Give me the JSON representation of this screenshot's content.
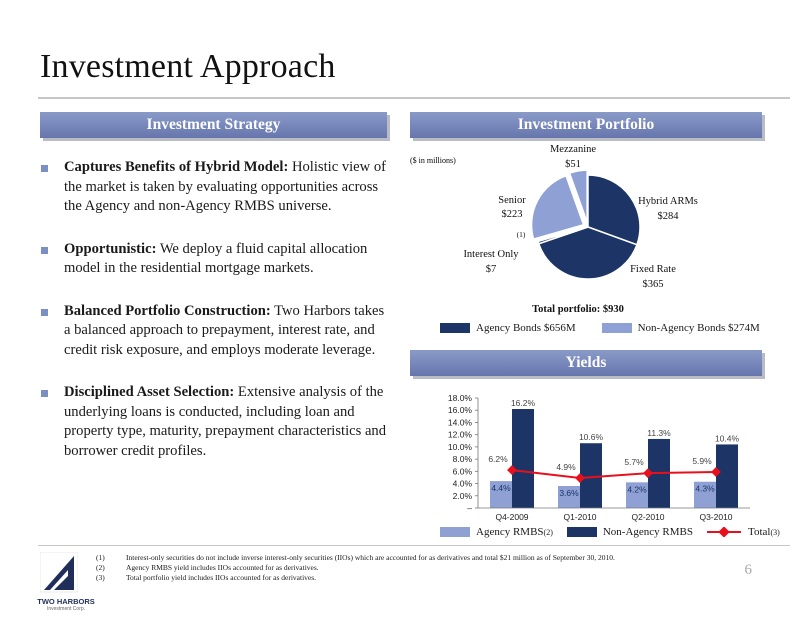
{
  "title": "Investment Approach",
  "headers": {
    "strategy": "Investment Strategy",
    "portfolio": "Investment Portfolio",
    "yields": "Yields"
  },
  "bullets": [
    {
      "bold": "Captures Benefits of Hybrid Model:",
      "text": " Holistic view of the market is taken by evaluating opportunities across the Agency and non-Agency RMBS universe."
    },
    {
      "bold": "Opportunistic:",
      "text": " We deploy a fluid capital allocation model in the residential mortgage markets."
    },
    {
      "bold": "Balanced Portfolio Construction:",
      "text": " Two Harbors takes a balanced approach to prepayment, interest rate, and credit risk exposure, and employs moderate leverage."
    },
    {
      "bold": "Disciplined Asset Selection:",
      "text": " Extensive analysis of the underlying loans is conducted, including loan and property type, maturity, prepayment characteristics and borrower credit profiles."
    }
  ],
  "portfolio": {
    "units_note": "($ in millions)",
    "total": "Total portfolio: $930",
    "legend": [
      "Agency Bonds $656M",
      "Non-Agency Bonds $274M"
    ],
    "colors": {
      "agency": "#1c3466",
      "non_agency": "#8ea0d4"
    }
  },
  "chart_data": [
    {
      "type": "pie",
      "labels": [
        "Hybrid ARMs",
        "Fixed Rate",
        "Interest Only",
        "Senior",
        "Mezzanine"
      ],
      "value_labels": [
        "$284",
        "$365",
        "$7",
        "$223",
        "$51"
      ],
      "values": [
        284,
        365,
        7,
        223,
        51
      ],
      "footnote_marks": [
        "",
        "",
        "(1)",
        "",
        ""
      ],
      "colors": [
        "#1c3466",
        "#1c3466",
        "#1c3466",
        "#8ea0d4",
        "#8ea0d4"
      ]
    },
    {
      "type": "bar",
      "categories": [
        "Q4-2009",
        "Q1-2010",
        "Q2-2010",
        "Q3-2010"
      ],
      "series": [
        {
          "name": "Agency RMBS",
          "values": [
            4.4,
            3.6,
            4.2,
            4.3
          ],
          "labels": [
            "4.4%",
            "3.6%",
            "4.2%",
            "4.3%"
          ],
          "color": "#8ea0d4"
        },
        {
          "name": "Non-Agency RMBS",
          "values": [
            16.2,
            10.6,
            11.3,
            10.4
          ],
          "labels": [
            "16.2%",
            "10.6%",
            "11.3%",
            "10.4%"
          ],
          "color": "#1c3466"
        },
        {
          "name": "Total",
          "type": "line",
          "values": [
            6.2,
            4.9,
            5.7,
            5.9
          ],
          "labels": [
            "6.2%",
            "4.9%",
            "5.7%",
            "5.9%"
          ],
          "color": "#e8101c"
        }
      ],
      "yticks": [
        "18.0%",
        "16.0%",
        "14.0%",
        "12.0%",
        "10.0%",
        "8.0%",
        "6.0%",
        "4.0%",
        "2.0%",
        "–"
      ],
      "ylim": [
        0,
        18
      ],
      "legend_marks": [
        "(2)",
        "",
        "(3)"
      ]
    }
  ],
  "footnotes": [
    {
      "n": "(1)",
      "text": "Interest-only securities do not include inverse interest-only securities (IIOs) which are accounted for as derivatives and total $21 million as of September 30, 2010."
    },
    {
      "n": "(2)",
      "text": "Agency RMBS yield includes IIOs accounted for as derivatives."
    },
    {
      "n": "(3)",
      "text": "Total portfolio yield includes IIOs accounted for as derivatives."
    }
  ],
  "logo": {
    "name": "TWO HARBORS",
    "sub": "Investment Corp."
  },
  "page_number": "6"
}
